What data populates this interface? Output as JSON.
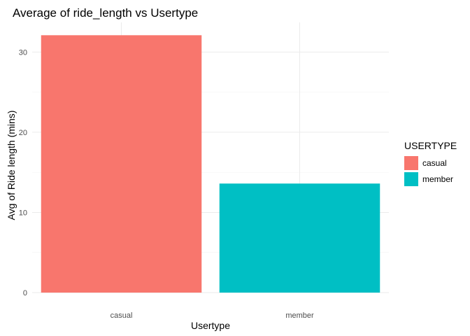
{
  "chart_data": {
    "type": "bar",
    "title": "Average of ride_length vs Usertype",
    "xlabel": "Usertype",
    "ylabel": "Avg of Ride length (mins)",
    "categories": [
      "casual",
      "member"
    ],
    "values": [
      32.1,
      13.6
    ],
    "ylim": [
      0,
      33.7
    ],
    "yticks": [
      0,
      10,
      20,
      30
    ],
    "ytick_labels": [
      "0",
      "10",
      "20",
      "30"
    ],
    "grid": true,
    "legend": {
      "title": "USERTYPE",
      "position": "right",
      "entries": [
        {
          "label": "casual",
          "color": "#F8766D"
        },
        {
          "label": "member",
          "color": "#00BFC4"
        }
      ]
    },
    "colors": [
      "#F8766D",
      "#00BFC4"
    ]
  }
}
